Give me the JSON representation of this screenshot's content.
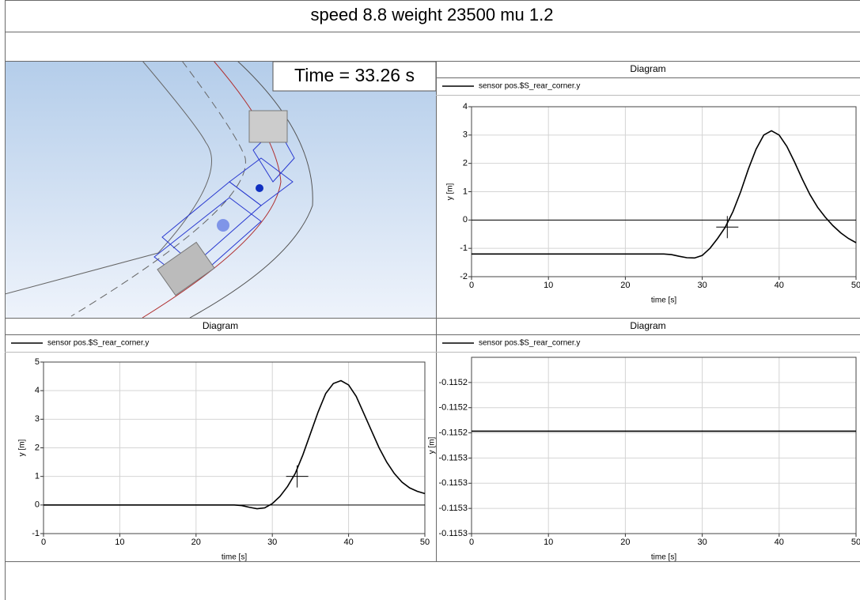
{
  "header": {
    "title": "speed 8.8 weight 23500 mu 1.2"
  },
  "animation": {
    "time_label": "Time = 33.26 s"
  },
  "chart_data": [
    {
      "type": "line",
      "title": "Diagram",
      "xlabel": "time [s]",
      "ylabel": "y [m]",
      "x": [
        0,
        5,
        10,
        15,
        20,
        25,
        26,
        27,
        28,
        29,
        30,
        31,
        32,
        33,
        34,
        35,
        36,
        37,
        38,
        39,
        40,
        41,
        42,
        43,
        44,
        45,
        46,
        47,
        48,
        49,
        50
      ],
      "series": [
        {
          "name": "sensor pos.$S_rear_corner.y",
          "color": "#000000",
          "values": [
            -1.2,
            -1.2,
            -1.2,
            -1.2,
            -1.2,
            -1.2,
            -1.22,
            -1.28,
            -1.33,
            -1.34,
            -1.25,
            -1.0,
            -0.65,
            -0.25,
            0.3,
            1.0,
            1.8,
            2.5,
            3.0,
            3.15,
            3.0,
            2.6,
            2.05,
            1.45,
            0.9,
            0.45,
            0.1,
            -0.2,
            -0.45,
            -0.65,
            -0.8
          ]
        }
      ],
      "xlim": [
        0,
        50
      ],
      "ylim": [
        -2,
        4
      ],
      "xticks": [
        0,
        10,
        20,
        30,
        40,
        50
      ],
      "yticks": [
        -2,
        -1,
        0,
        1,
        2,
        3,
        4
      ],
      "grid": true,
      "zero_line": true,
      "cursor": {
        "x": 33.26,
        "y": -0.25
      }
    },
    {
      "type": "line",
      "title": "Diagram",
      "xlabel": "time [s]",
      "ylabel": "y [m]",
      "x": [
        0,
        5,
        10,
        15,
        20,
        25,
        26,
        27,
        28,
        29,
        30,
        31,
        32,
        33,
        34,
        35,
        36,
        37,
        38,
        39,
        40,
        41,
        42,
        43,
        44,
        45,
        46,
        47,
        48,
        49,
        50
      ],
      "series": [
        {
          "name": "sensor pos.$S_rear_corner.y",
          "color": "#000000",
          "values": [
            0,
            0,
            0,
            0,
            0,
            0,
            -0.02,
            -0.08,
            -0.13,
            -0.1,
            0.05,
            0.3,
            0.65,
            1.1,
            1.75,
            2.5,
            3.25,
            3.9,
            4.25,
            4.35,
            4.2,
            3.8,
            3.2,
            2.6,
            2.0,
            1.5,
            1.1,
            0.8,
            0.6,
            0.48,
            0.4
          ]
        }
      ],
      "xlim": [
        0,
        50
      ],
      "ylim": [
        -1,
        5
      ],
      "xticks": [
        0,
        10,
        20,
        30,
        40,
        50
      ],
      "yticks": [
        -1,
        0,
        1,
        2,
        3,
        4,
        5
      ],
      "grid": true,
      "zero_line": true,
      "cursor": {
        "x": 33.26,
        "y": 1.0
      }
    },
    {
      "type": "line",
      "title": "Diagram",
      "xlabel": "time [s]",
      "ylabel": "y [m]",
      "x": [
        0,
        50
      ],
      "series": [
        {
          "name": "sensor pos.$S_rear_corner.y",
          "color": "#000000",
          "values": [
            -0.115244,
            -0.115244
          ]
        }
      ],
      "xlim": [
        0,
        50
      ],
      "ylim": [
        -0.115305,
        -0.1152
      ],
      "xticks": [
        0,
        10,
        20,
        30,
        40,
        50
      ],
      "yticks": [
        {
          "value": -0.115215,
          "label": "-0.1152"
        },
        {
          "value": -0.11523,
          "label": "-0.1152"
        },
        {
          "value": -0.115245,
          "label": "-0.1152"
        },
        {
          "value": -0.11526,
          "label": "-0.1153"
        },
        {
          "value": -0.115275,
          "label": "-0.1153"
        },
        {
          "value": -0.11529,
          "label": "-0.1153"
        },
        {
          "value": -0.115305,
          "label": "-0.1153"
        }
      ],
      "grid": true,
      "zero_line": false
    }
  ]
}
